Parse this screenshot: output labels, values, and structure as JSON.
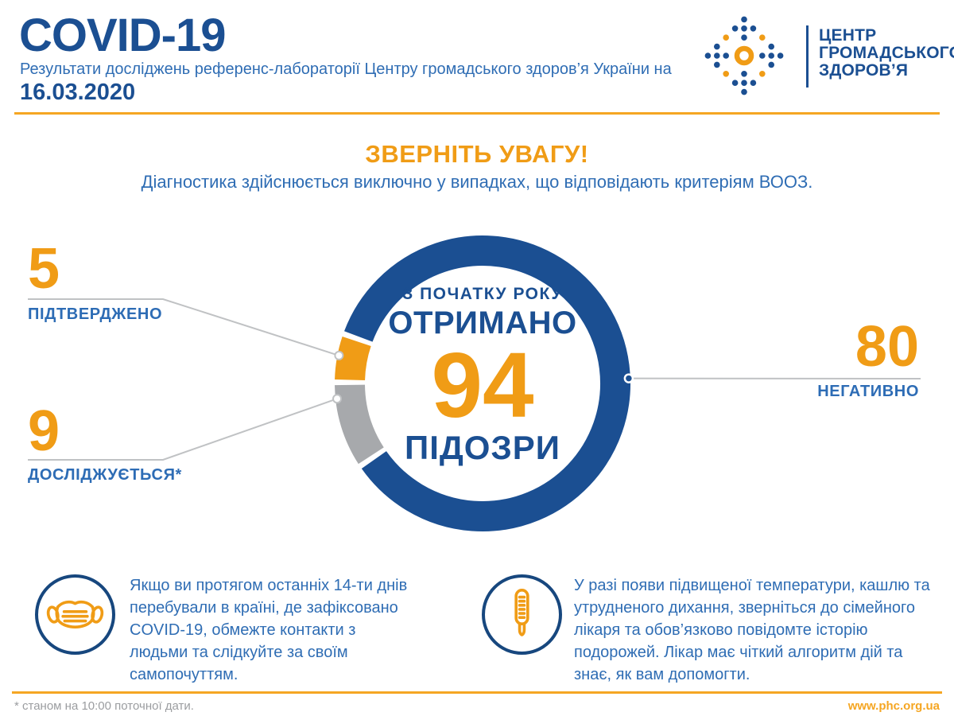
{
  "header": {
    "title": "COVID-19",
    "subtitle": "Результати досліджень референс-лабораторії Центру громадського здоров’я України на",
    "date": "16.03.2020",
    "logo": {
      "icon": "phc-dots-logo",
      "lines": [
        "ЦЕНТР",
        "ГРОМАДСЬКОГО",
        "ЗДОРОВ’Я"
      ]
    }
  },
  "notice": {
    "title": "ЗВЕРНІТЬ УВАГУ!",
    "text": "Діагностика здійснюється виключно у випадках, що відповідають критеріям ВООЗ."
  },
  "chart_data": {
    "type": "pie",
    "subtype": "donut",
    "center": {
      "line1": "З ПОЧАТКУ РОКУ",
      "line2": "ОТРИМАНО",
      "total": 94,
      "total_label": "ПІДОЗРИ"
    },
    "segments": [
      {
        "label": "ПІДТВЕРДЖЕНО",
        "value": 5,
        "color": "#f09c16"
      },
      {
        "label": "ДОСЛІДЖУЄТЬСЯ*",
        "value": 9,
        "color": "#a7a9ac"
      },
      {
        "label": "НЕГАТИВНО",
        "value": 80,
        "color": "#1b4f92"
      }
    ],
    "start_angle_deg": 160.4,
    "legend_position": "callouts-left-right",
    "grid": false
  },
  "tips": [
    {
      "icon": "mask-icon",
      "text": "Якщо ви протягом останніх 14-ти днів перебували в країні, де зафіксовано COVID-19, обмежте контакти з людьми та слідкуйте за своїм самопочуттям."
    },
    {
      "icon": "thermometer-icon",
      "text": "У разі появи підвищеної температури, кашлю та утрудненого дихання, зверніться до сімейного лікаря та обов’язково повідомте історію подорожей. Лікар має чіткий алгоритм дій та знає, як вам допомогти."
    }
  ],
  "footer": {
    "note": "* станом на 10:00 поточної дати.",
    "website": "www.phc.org.ua"
  },
  "colors": {
    "dark_blue": "#1b4f92",
    "text_blue": "#2f6db4",
    "orange": "#f09c16",
    "rule_orange": "#f5a623",
    "segment_gray": "#a7a9ac",
    "connector": "#c0c2c4",
    "footer_gray": "#9b9da0"
  }
}
